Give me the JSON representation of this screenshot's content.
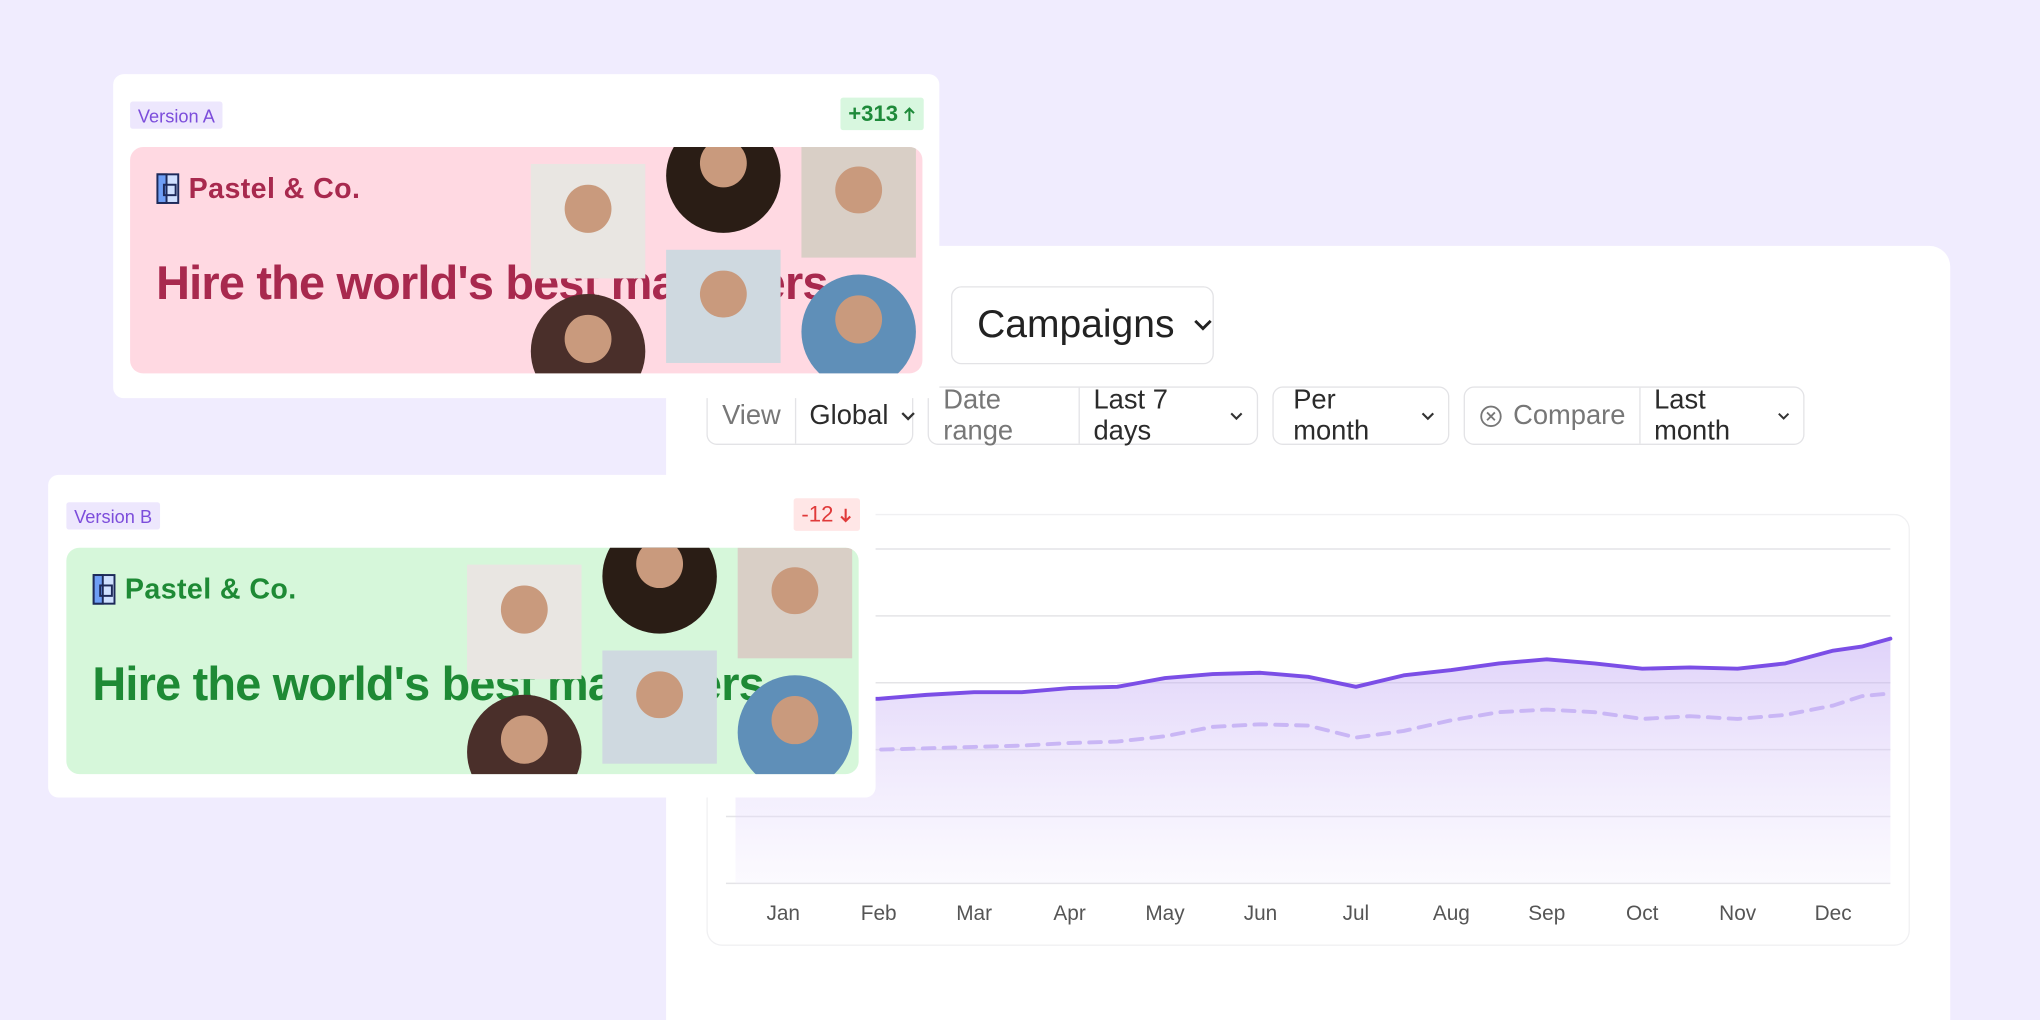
{
  "version_a": {
    "label": "Version A",
    "delta": "+313",
    "brand": "Pastel & Co.",
    "headline": "Hire the world's best marketers"
  },
  "version_b": {
    "label": "Version B",
    "delta": "-12",
    "brand": "Pastel & Co.",
    "headline": "Hire the world's best marketers"
  },
  "dashboard": {
    "title_dropdown": "Campaigns",
    "filters": [
      {
        "label": "View",
        "value": "Global"
      },
      {
        "label": "Date range",
        "value": "Last 7 days"
      },
      {
        "value": "Per month"
      },
      {
        "label": "Compare",
        "value": "Last month"
      }
    ]
  },
  "chart_data": {
    "type": "line",
    "xlim": [
      -0.6,
      11.6
    ],
    "ylim": [
      0,
      5
    ],
    "xticks": [
      {
        "value": 0,
        "label": "Jan"
      },
      {
        "value": 1,
        "label": "Feb"
      },
      {
        "value": 2,
        "label": "Mar"
      },
      {
        "value": 3,
        "label": "Apr"
      },
      {
        "value": 4,
        "label": "May"
      },
      {
        "value": 5,
        "label": "Jun"
      },
      {
        "value": 6,
        "label": "Jul"
      },
      {
        "value": 7,
        "label": "Aug"
      },
      {
        "value": 8,
        "label": "Sep"
      },
      {
        "value": 9,
        "label": "Oct"
      },
      {
        "value": 10,
        "label": "Nov"
      },
      {
        "value": 11,
        "label": "Dec"
      }
    ],
    "x": [
      -0.5,
      0,
      0.5,
      1,
      1.5,
      2,
      2.5,
      3,
      3.5,
      4,
      4.5,
      5,
      5.5,
      6,
      6.5,
      7,
      7.5,
      8,
      8.5,
      9,
      9.5,
      10,
      10.5,
      11,
      11.3,
      11.6
    ],
    "series": [
      {
        "color": "#7b4ee6",
        "area": true,
        "dashed": false,
        "values": [
          2.76,
          2.76,
          2.76,
          2.76,
          2.82,
          2.86,
          2.86,
          2.92,
          2.94,
          3.07,
          3.13,
          3.15,
          3.09,
          2.94,
          3.11,
          3.19,
          3.29,
          3.35,
          3.29,
          3.21,
          3.23,
          3.21,
          3.29,
          3.48,
          3.54,
          3.66
        ]
      },
      {
        "color": "#c9b6f5",
        "area": false,
        "dashed": true,
        "values": [
          1.98,
          1.98,
          2.0,
          2.0,
          2.02,
          2.04,
          2.06,
          2.1,
          2.12,
          2.2,
          2.34,
          2.38,
          2.36,
          2.18,
          2.28,
          2.44,
          2.56,
          2.6,
          2.56,
          2.46,
          2.5,
          2.46,
          2.52,
          2.66,
          2.8,
          2.84
        ]
      }
    ]
  }
}
